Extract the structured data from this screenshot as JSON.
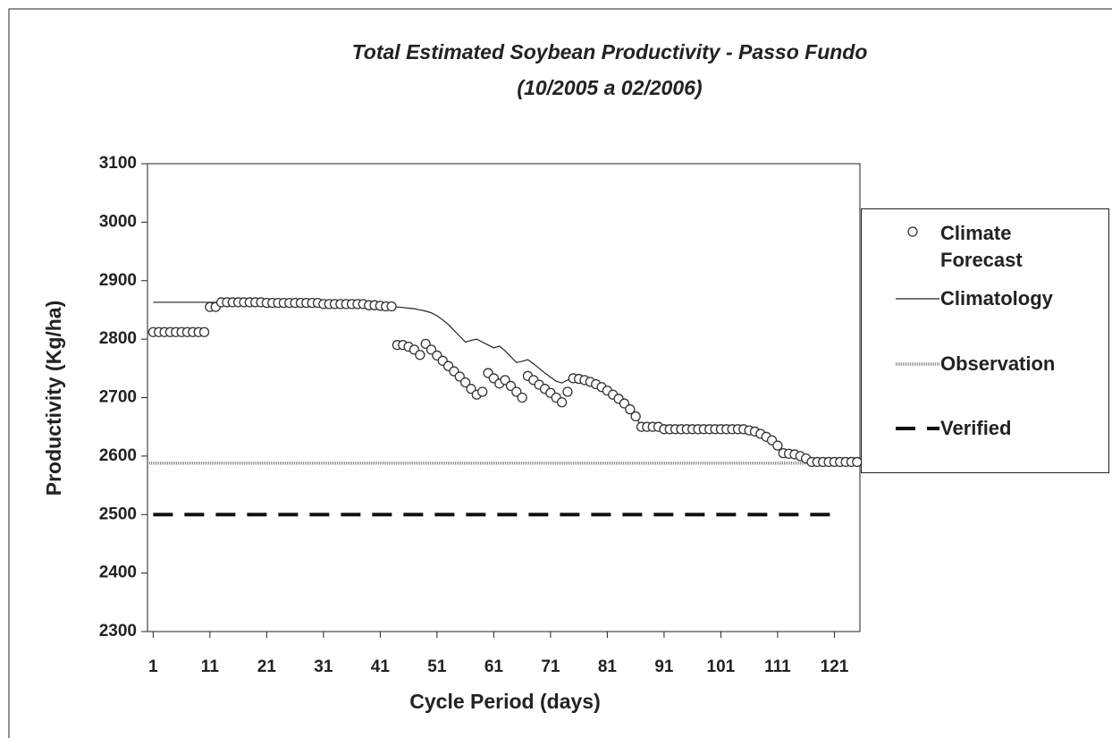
{
  "chart_data": {
    "type": "line",
    "title": "Total Estimated Soybean Productivity - Passo Fundo",
    "subtitle": "(10/2005 a 02/2006)",
    "x_label": "Cycle Period (days)",
    "y_label": "Productivity (Kg/ha)",
    "x": [
      1,
      2,
      3,
      4,
      5,
      6,
      7,
      8,
      9,
      10,
      11,
      12,
      13,
      14,
      15,
      16,
      17,
      18,
      19,
      20,
      21,
      22,
      23,
      24,
      25,
      26,
      27,
      28,
      29,
      30,
      31,
      32,
      33,
      34,
      35,
      36,
      37,
      38,
      39,
      40,
      41,
      42,
      43,
      44,
      45,
      46,
      47,
      48,
      49,
      50,
      51,
      52,
      53,
      54,
      55,
      56,
      57,
      58,
      59,
      60,
      61,
      62,
      63,
      64,
      65,
      66,
      67,
      68,
      69,
      70,
      71,
      72,
      73,
      74,
      75,
      76,
      77,
      78,
      79,
      80,
      81,
      82,
      83,
      84,
      85,
      86,
      87,
      88,
      89,
      90,
      91,
      92,
      93,
      94,
      95,
      96,
      97,
      98,
      99,
      100,
      101,
      102,
      103,
      104,
      105,
      106,
      107,
      108,
      109,
      110,
      111,
      112,
      113,
      114,
      115,
      116,
      117,
      118,
      119,
      120,
      121,
      122,
      123,
      124,
      125
    ],
    "xlim": [
      0,
      125.5
    ],
    "xticks": [
      1,
      11,
      21,
      31,
      41,
      51,
      61,
      71,
      81,
      91,
      101,
      111,
      121
    ],
    "ylim": [
      2300,
      3100
    ],
    "yticks": [
      2300,
      2400,
      2500,
      2600,
      2700,
      2800,
      2900,
      3000,
      3100
    ],
    "legend": "right",
    "series": [
      {
        "name": "Climate Forecast",
        "color": "#333333",
        "marker": "circle",
        "values": [
          2812,
          2812,
          2812,
          2812,
          2812,
          2812,
          2812,
          2812,
          2812,
          2812,
          2855,
          2855,
          2863,
          2863,
          2863,
          2863,
          2863,
          2863,
          2863,
          2863,
          2862,
          2862,
          2862,
          2862,
          2862,
          2862,
          2862,
          2862,
          2862,
          2862,
          2860,
          2860,
          2860,
          2860,
          2860,
          2860,
          2860,
          2860,
          2858,
          2858,
          2857,
          2856,
          2856,
          2790,
          2790,
          2787,
          2782,
          2773,
          2792,
          2782,
          2772,
          2763,
          2754,
          2745,
          2736,
          2726,
          2715,
          2705,
          2710,
          2742,
          2733,
          2724,
          2730,
          2720,
          2710,
          2700,
          2737,
          2730,
          2722,
          2715,
          2708,
          2700,
          2692,
          2710,
          2733,
          2732,
          2730,
          2727,
          2723,
          2718,
          2712,
          2705,
          2698,
          2690,
          2680,
          2668,
          2650,
          2650,
          2650,
          2650,
          2646,
          2646,
          2646,
          2646,
          2646,
          2646,
          2646,
          2646,
          2646,
          2646,
          2646,
          2646,
          2646,
          2646,
          2646,
          2644,
          2642,
          2638,
          2633,
          2627,
          2618,
          2605,
          2604,
          2603,
          2600,
          2596,
          2590,
          2590,
          2590,
          2590,
          2590,
          2590,
          2590,
          2590,
          2590
        ]
      },
      {
        "name": "Climatology",
        "color": "#222222",
        "marker": "line",
        "values": [
          2863,
          2863,
          2863,
          2863,
          2863,
          2863,
          2863,
          2863,
          2863,
          2863,
          2863,
          2863,
          2862,
          2862,
          2862,
          2862,
          2862,
          2862,
          2862,
          2862,
          2862,
          2862,
          2862,
          2862,
          2862,
          2862,
          2862,
          2862,
          2862,
          2862,
          2862,
          2862,
          2862,
          2862,
          2862,
          2862,
          2862,
          2862,
          2862,
          2862,
          2860,
          2858,
          2856,
          2855,
          2854,
          2853,
          2852,
          2850,
          2848,
          2845,
          2840,
          2833,
          2825,
          2815,
          2805,
          2795,
          2798,
          2800,
          2795,
          2790,
          2785,
          2788,
          2780,
          2770,
          2760,
          2762,
          2765,
          2758,
          2750,
          2742,
          2735,
          2728,
          2725,
          2730,
          2733,
          2732,
          2730,
          2727,
          2723,
          2718,
          2712,
          2705,
          2698,
          2690,
          2680,
          2668,
          2650,
          2650,
          2650,
          2650,
          2646,
          2646,
          2646,
          2646,
          2646,
          2646,
          2646,
          2646,
          2646,
          2646,
          2646,
          2646,
          2646,
          2646,
          2646,
          2644,
          2642,
          2638,
          2633,
          2627,
          2618,
          2605,
          2604,
          2603,
          2600,
          2596,
          2590,
          2590,
          2590,
          2590,
          2590,
          2590,
          2590,
          2590,
          2590
        ]
      },
      {
        "name": "Observation",
        "color": "#8a8a8a",
        "marker": "thick",
        "x": [
          0,
          125.5
        ],
        "values": [
          2588,
          2588
        ]
      },
      {
        "name": "Verified",
        "color": "#111111",
        "marker": "dash",
        "x": [
          1,
          121
        ],
        "values": [
          2500,
          2500
        ]
      }
    ]
  }
}
